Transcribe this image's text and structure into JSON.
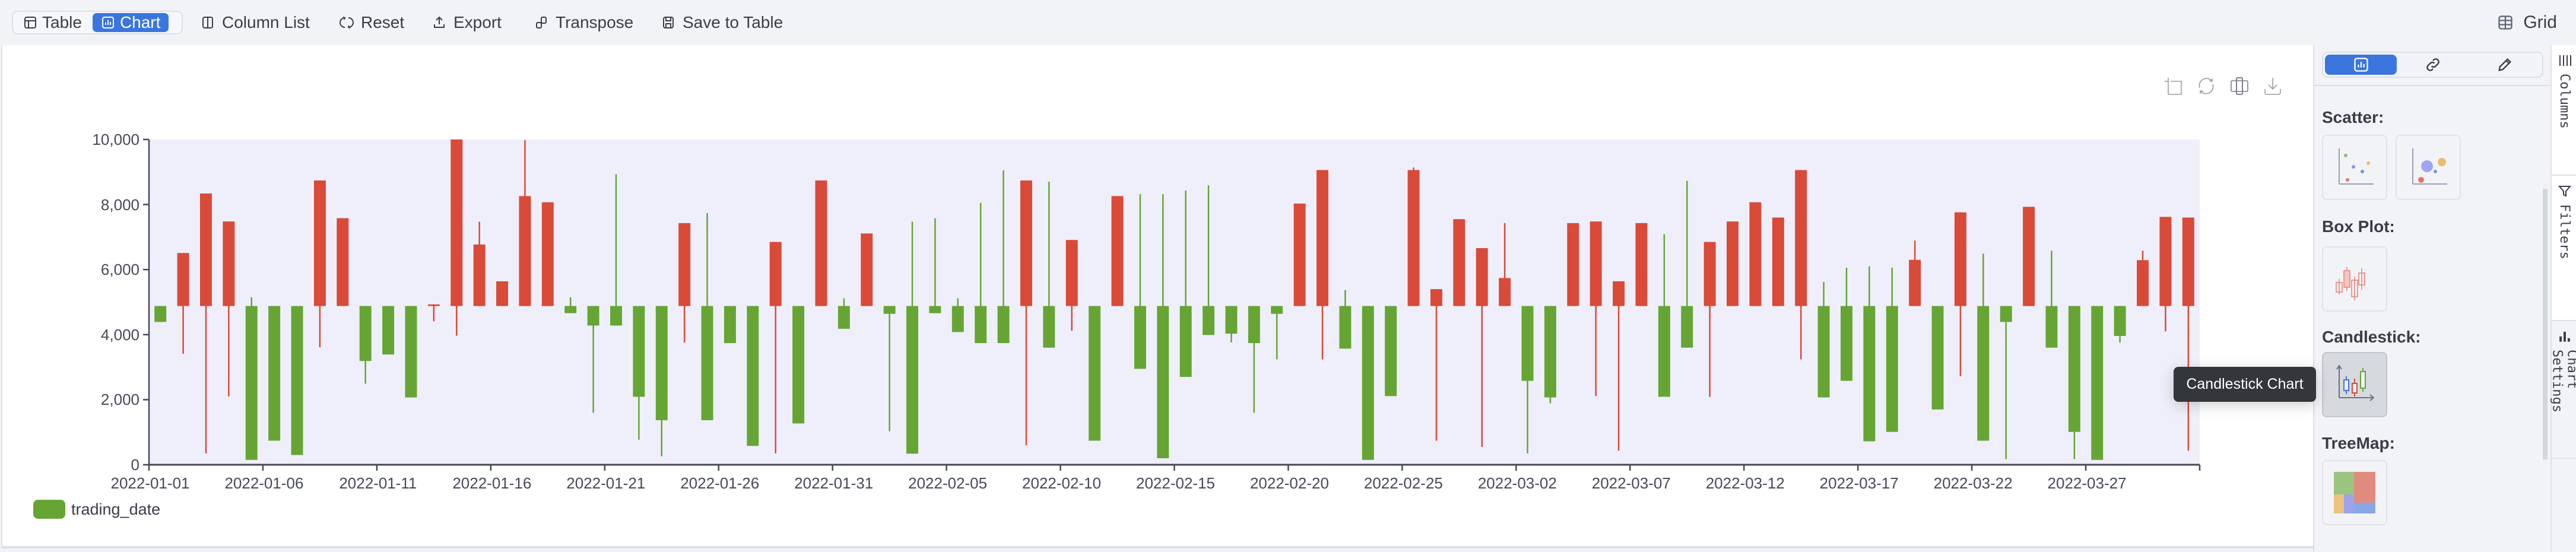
{
  "toolbar": {
    "view_toggle": [
      {
        "label": "Table",
        "icon": "table-icon",
        "active": false
      },
      {
        "label": "Chart",
        "icon": "chart-icon",
        "active": true
      }
    ],
    "actions": [
      {
        "label": "Column List",
        "icon": "column-list-icon"
      },
      {
        "label": "Reset",
        "icon": "reset-icon"
      },
      {
        "label": "Export",
        "icon": "export-icon"
      },
      {
        "label": "Transpose",
        "icon": "transpose-icon"
      },
      {
        "label": "Save to Table",
        "icon": "save-icon"
      }
    ],
    "grid_label": "Grid"
  },
  "chart_tools": [
    "crop-icon",
    "refresh-icon",
    "resize-icon",
    "download-icon"
  ],
  "sidebar": {
    "segments": [
      {
        "icon": "chart-icon",
        "active": true
      },
      {
        "icon": "link-icon",
        "active": false
      },
      {
        "icon": "pencil-icon",
        "active": false
      }
    ],
    "sections": [
      {
        "label": "Scatter:",
        "tiles": [
          "scatter-plot-icon",
          "bubble-chart-icon"
        ]
      },
      {
        "label": "Box Plot:",
        "tiles": [
          "box-plot-icon"
        ]
      },
      {
        "label": "Candlestick:",
        "tiles": [
          "candlestick-icon"
        ]
      },
      {
        "label": "TreeMap:",
        "tiles": [
          "treemap-icon"
        ]
      }
    ],
    "tooltip": "Candlestick Chart"
  },
  "side_tabs": [
    {
      "label": "Columns",
      "icon": "columns-icon",
      "active": false
    },
    {
      "label": "Filters",
      "icon": "filter-icon",
      "active": false
    },
    {
      "label": "Chart Settings",
      "icon": "chart-settings-icon",
      "active": true
    }
  ],
  "colors": {
    "up": "#d94a38",
    "down": "#66a534",
    "plot_bg": "#efeffb",
    "accent": "#3b76df"
  },
  "chart_data": {
    "type": "candlestick",
    "title": "",
    "xlabel": "",
    "ylabel": "",
    "ylim": [
      0,
      10000
    ],
    "yticks": [
      "0",
      "2,000",
      "4,000",
      "6,000",
      "8,000",
      "10,000"
    ],
    "xtick_labels": [
      "2022-01-01",
      "2022-01-06",
      "2022-01-11",
      "2022-01-16",
      "2022-01-21",
      "2022-01-26",
      "2022-01-31",
      "2022-02-05",
      "2022-02-10",
      "2022-02-15",
      "2022-02-20",
      "2022-02-25",
      "2022-03-02",
      "2022-03-07",
      "2022-03-12",
      "2022-03-17",
      "2022-03-22",
      "2022-03-27"
    ],
    "legend": [
      {
        "name": "trading_date",
        "color": "#66a534"
      }
    ],
    "legend_position": "bottom-left",
    "grid": false,
    "start_date": "2022-01-01",
    "days": 90,
    "open": 4880,
    "close": [
      4390,
      6510,
      8340,
      7480,
      150,
      740,
      300,
      8740,
      7580,
      3190,
      3390,
      2070,
      4930,
      10000,
      6770,
      5640,
      8260,
      8070,
      4660,
      4280,
      4280,
      2090,
      1370,
      7430,
      1370,
      3740,
      580,
      6850,
      1270,
      8740,
      4180,
      7110,
      4640,
      340,
      4660,
      4080,
      3740,
      3740,
      8740,
      3600,
      6910,
      740,
      8260,
      2950,
      200,
      2700,
      3990,
      4030,
      3740,
      4640,
      8030,
      9060,
      3570,
      150,
      2110,
      9060,
      5400,
      7550,
      6660,
      5740,
      2580,
      2070,
      7430,
      7480,
      5640,
      7430,
      2090,
      3600,
      6850,
      7480,
      8070,
      7600,
      9060,
      2070,
      2580,
      720,
      1010,
      6300,
      1700,
      7760,
      740,
      4390,
      7930,
      3600,
      1010,
      150,
      3960,
      6290,
      7620,
      7600
    ],
    "high": [
      4880,
      6510,
      8340,
      7480,
      5150,
      4880,
      4880,
      8740,
      7580,
      4880,
      4880,
      4880,
      4930,
      10000,
      7470,
      5640,
      9980,
      8070,
      5150,
      4880,
      8930,
      4880,
      4880,
      7430,
      7740,
      4880,
      4880,
      6850,
      4880,
      8740,
      5120,
      7110,
      4880,
      7470,
      7580,
      5120,
      8050,
      9050,
      8740,
      8700,
      6910,
      4880,
      8260,
      8320,
      8320,
      8430,
      8590,
      4880,
      4880,
      4880,
      8030,
      9060,
      5370,
      4880,
      4880,
      9140,
      5400,
      7550,
      6660,
      7430,
      4880,
      4880,
      7430,
      7480,
      5640,
      7430,
      7090,
      8730,
      6850,
      7480,
      8070,
      7600,
      9060,
      5620,
      6060,
      6100,
      6060,
      6890,
      4880,
      7760,
      6490,
      4880,
      7930,
      6580,
      4880,
      4880,
      4880,
      6580,
      7620,
      7600
    ],
    "low": [
      4390,
      3410,
      350,
      2100,
      150,
      740,
      300,
      3610,
      4880,
      2490,
      3390,
      2070,
      4410,
      3970,
      4880,
      4880,
      4880,
      4880,
      4660,
      1600,
      4280,
      770,
      260,
      3760,
      1370,
      3740,
      580,
      350,
      1270,
      4880,
      4180,
      4880,
      1030,
      340,
      4660,
      4080,
      3740,
      3740,
      600,
      3600,
      4120,
      740,
      4880,
      2950,
      200,
      2700,
      3990,
      3760,
      1600,
      3240,
      4880,
      3240,
      3570,
      150,
      2110,
      4880,
      740,
      4880,
      550,
      4880,
      350,
      1890,
      4880,
      2110,
      430,
      4880,
      2090,
      3600,
      2090,
      4880,
      4880,
      4880,
      3240,
      2070,
      2580,
      720,
      1010,
      4880,
      1700,
      2720,
      740,
      170,
      4880,
      3600,
      170,
      150,
      3760,
      4880,
      4100,
      430
    ]
  }
}
